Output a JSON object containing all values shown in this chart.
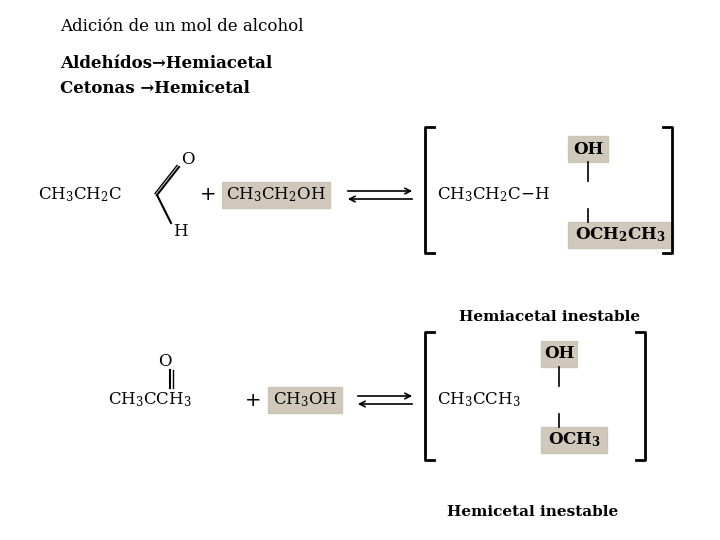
{
  "title": "Adición de un mol de alcohol",
  "line1": "Aldehídos→Hemiacetal",
  "line2": "Cetonas →Hemicetal",
  "bg_color": "#ffffff",
  "title_fontsize": 12,
  "label_fontsize": 12,
  "chem_fontsize": 11,
  "highlight_color": "#c8c0b0"
}
